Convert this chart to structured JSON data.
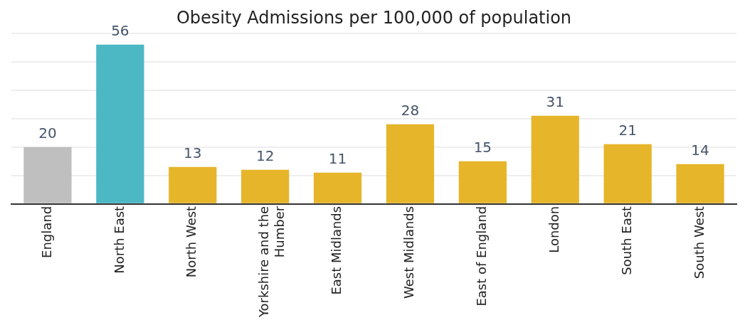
{
  "chart_data": {
    "type": "bar",
    "title": "Obesity Admissions per 100,000 of population",
    "categories": [
      "England",
      "North East",
      "North West",
      "Yorkshire and the Humber",
      "East Midlands",
      "West Midlands",
      "East of England",
      "London",
      "South East",
      "South West"
    ],
    "values": [
      20,
      56,
      13,
      12,
      11,
      28,
      15,
      31,
      21,
      14
    ],
    "colors": [
      "#bfbfbf",
      "#4bb8c4",
      "#e6b52a",
      "#e6b52a",
      "#e6b52a",
      "#e6b52a",
      "#e6b52a",
      "#e6b52a",
      "#e6b52a",
      "#e6b52a"
    ],
    "grid": "y",
    "data_labels": true,
    "tick_labels": "x"
  }
}
